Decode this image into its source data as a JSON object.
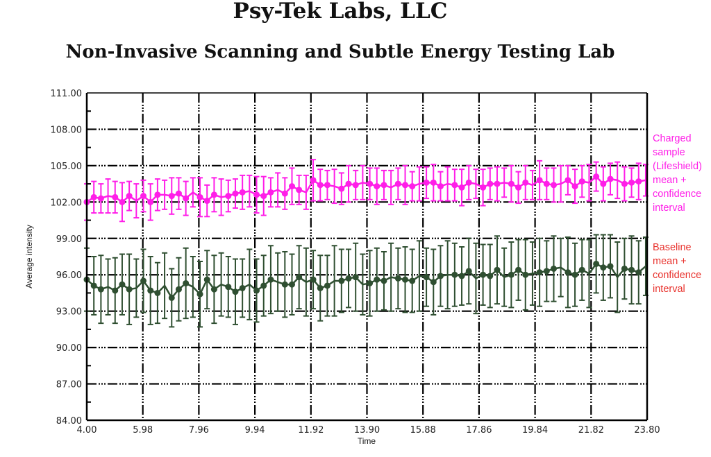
{
  "header": {
    "title": "Psy-Tek Labs, LLC",
    "subtitle": "Non-Invasive Scanning and Subtle Energy Testing Lab"
  },
  "chart_data": {
    "type": "line",
    "xlabel": "Time",
    "ylabel": "Average intensity",
    "xlim": [
      4.0,
      23.8
    ],
    "ylim": [
      84.0,
      111.0
    ],
    "x_ticks": [
      "4.00",
      "5.98",
      "7.96",
      "9.94",
      "11.92",
      "13.90",
      "15.88",
      "17.86",
      "19.84",
      "21.82",
      "23.80"
    ],
    "y_ticks": [
      "84.00",
      "87.00",
      "90.00",
      "93.00",
      "96.00",
      "99.00",
      "102.00",
      "105.00",
      "108.00",
      "111.00"
    ],
    "grid": true,
    "legend_placement": "right",
    "x_start": 4.0,
    "x_step": 0.25,
    "series": [
      {
        "name": "Charged sample (Lifeshield) mean + confidence interval",
        "legend_text": "Charged\nsample\n(Lifeshield)\nmean +\nconfidence\ninterval",
        "color": "#ff1ee8",
        "mean": [
          102.0,
          102.4,
          102.3,
          102.5,
          102.4,
          102.0,
          102.5,
          102.1,
          102.5,
          102.0,
          102.6,
          102.6,
          102.5,
          102.7,
          102.3,
          102.8,
          102.4,
          102.1,
          102.6,
          102.4,
          102.5,
          102.7,
          102.8,
          102.9,
          102.6,
          102.5,
          102.8,
          103.0,
          102.7,
          103.3,
          103.0,
          102.8,
          103.8,
          103.4,
          103.4,
          103.3,
          103.1,
          103.5,
          103.4,
          103.6,
          103.5,
          103.3,
          103.4,
          103.2,
          103.5,
          103.4,
          103.3,
          103.5,
          103.6,
          103.6,
          103.3,
          103.5,
          103.4,
          103.2,
          103.6,
          103.5,
          103.2,
          103.5,
          103.5,
          103.6,
          103.5,
          103.2,
          103.6,
          103.4,
          103.8,
          103.5,
          103.4,
          103.5,
          103.8,
          103.3,
          103.7,
          103.6,
          104.1,
          103.5,
          103.9,
          103.8,
          103.5,
          103.6,
          103.7,
          103.8
        ],
        "ci": [
          1.5,
          1.3,
          1.2,
          1.4,
          1.3,
          1.6,
          1.2,
          1.4,
          1.3,
          1.5,
          1.3,
          1.2,
          1.5,
          1.3,
          1.4,
          1.2,
          1.6,
          1.3,
          1.4,
          1.5,
          1.3,
          1.2,
          1.4,
          1.3,
          1.5,
          1.6,
          1.2,
          1.4,
          1.3,
          1.5,
          1.2,
          1.4,
          1.7,
          1.3,
          1.2,
          1.4,
          1.3,
          1.5,
          1.2,
          1.4,
          1.3,
          1.5,
          1.2,
          1.4,
          1.3,
          1.6,
          1.2,
          1.4,
          1.3,
          1.5,
          1.2,
          1.4,
          1.3,
          1.5,
          1.4,
          1.2,
          1.5,
          1.3,
          1.4,
          1.2,
          1.5,
          1.3,
          1.4,
          1.2,
          1.6,
          1.3,
          1.4,
          1.5,
          1.2,
          1.4,
          1.3,
          1.5,
          1.2,
          1.4,
          1.3,
          1.5,
          1.4,
          1.2,
          1.5,
          1.3
        ]
      },
      {
        "name": "Baseline mean + confidence interval",
        "legend_text": "Baseline\nmean +\nconfidence\ninterval",
        "color": "#2f4f31",
        "legend_color": "#e8312c",
        "mean": [
          95.6,
          95.1,
          94.8,
          95.0,
          94.7,
          95.2,
          94.8,
          94.9,
          95.5,
          94.7,
          94.5,
          95.1,
          94.1,
          94.8,
          95.3,
          95.0,
          94.4,
          95.6,
          94.8,
          95.2,
          95.0,
          94.6,
          94.9,
          95.2,
          94.7,
          95.1,
          95.6,
          95.4,
          95.2,
          95.2,
          95.8,
          95.4,
          95.6,
          94.9,
          95.1,
          95.5,
          95.5,
          95.7,
          95.8,
          95.2,
          95.3,
          95.6,
          95.5,
          95.8,
          95.7,
          95.6,
          95.5,
          95.9,
          95.8,
          95.4,
          95.9,
          96.0,
          96.0,
          95.9,
          96.3,
          95.7,
          96.0,
          95.9,
          96.4,
          95.8,
          96.0,
          96.4,
          96.0,
          96.1,
          96.2,
          96.3,
          96.5,
          96.6,
          96.2,
          96.0,
          96.4,
          96.1,
          96.9,
          96.6,
          96.7,
          95.8,
          96.5,
          96.4,
          96.2,
          96.7
        ],
        "ci": [
          2.6,
          2.4,
          2.8,
          2.3,
          2.7,
          2.5,
          2.9,
          2.4,
          2.6,
          2.8,
          2.5,
          2.7,
          2.4,
          2.6,
          2.9,
          2.5,
          2.7,
          2.4,
          2.8,
          2.6,
          2.5,
          2.7,
          2.4,
          2.9,
          2.6,
          2.5,
          2.8,
          2.4,
          2.7,
          2.5,
          2.6,
          2.8,
          2.4,
          2.7,
          2.5,
          2.9,
          2.6,
          2.4,
          2.8,
          2.5,
          2.7,
          2.6,
          2.4,
          2.8,
          2.5,
          2.7,
          2.6,
          2.9,
          2.4,
          2.7,
          2.5,
          2.8,
          2.6,
          2.4,
          2.7,
          2.9,
          2.5,
          2.6,
          2.8,
          2.4,
          2.7,
          2.5,
          2.9,
          2.6,
          2.8,
          2.5,
          2.7,
          2.4,
          2.9,
          2.6,
          2.5,
          2.8,
          2.4,
          2.7,
          2.6,
          2.9,
          2.5,
          2.8,
          2.6,
          2.4
        ]
      }
    ]
  }
}
